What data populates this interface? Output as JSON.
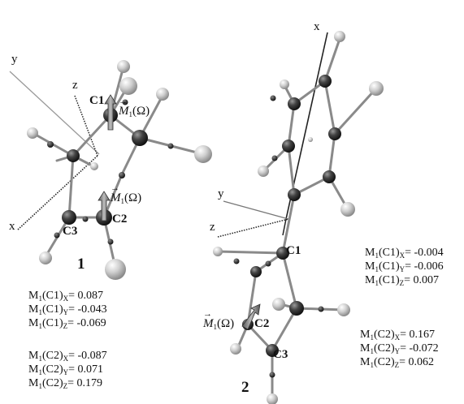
{
  "axes": {
    "mol1": {
      "x": "x",
      "y": "y",
      "z": "z"
    },
    "mol2": {
      "x": "x",
      "y": "y",
      "z": "z"
    }
  },
  "molecule_numbers": {
    "m1": "1",
    "m2": "2"
  },
  "atoms": {
    "m1": {
      "c1": "C1",
      "c2": "C2",
      "c3": "C3"
    },
    "m2": {
      "c1": "C1",
      "c2": "C2",
      "c3": "C3"
    }
  },
  "moment_labels": {
    "m1_c1": {
      "prefix": "M",
      "sub": "1",
      "arg": "(Ω)"
    },
    "m1_c2": {
      "prefix": "M",
      "sub": "1",
      "arg": "(Ω)"
    },
    "m2_c2": {
      "prefix": "M",
      "sub": "1",
      "arg": "(Ω)"
    }
  },
  "tables": {
    "mol1": [
      {
        "m": "M",
        "s1": "1",
        "atom": "(C1)",
        "s2": "X",
        "val": "= 0.087"
      },
      {
        "m": "M",
        "s1": "1",
        "atom": "(C1)",
        "s2": "Y",
        "val": "= -0.043"
      },
      {
        "m": "M",
        "s1": "1",
        "atom": "(C1)",
        "s2": "Z",
        "val": "= -0.069"
      },
      {
        "m": "M",
        "s1": "1",
        "atom": "(C2)",
        "s2": "X",
        "val": "= -0.087"
      },
      {
        "m": "M",
        "s1": "1",
        "atom": "(C2)",
        "s2": "Y",
        "val": "= 0.071"
      },
      {
        "m": "M",
        "s1": "1",
        "atom": "(C2)",
        "s2": "Z",
        "val": "= 0.179"
      }
    ],
    "mol2": [
      {
        "m": "M",
        "s1": "1",
        "atom": "(C1)",
        "s2": "X",
        "val": "= -0.004"
      },
      {
        "m": "M",
        "s1": "1",
        "atom": "(C1)",
        "s2": "Y",
        "val": "= -0.006"
      },
      {
        "m": "M",
        "s1": "1",
        "atom": "(C1)",
        "s2": "Z",
        "val": "= 0.007"
      },
      {
        "m": "M",
        "s1": "1",
        "atom": "(C2)",
        "s2": "X",
        "val": "= 0.167"
      },
      {
        "m": "M",
        "s1": "1",
        "atom": "(C2)",
        "s2": "Y",
        "val": "= -0.072"
      },
      {
        "m": "M",
        "s1": "1",
        "atom": "(C2)",
        "s2": "Z",
        "val": "= 0.062"
      }
    ]
  }
}
